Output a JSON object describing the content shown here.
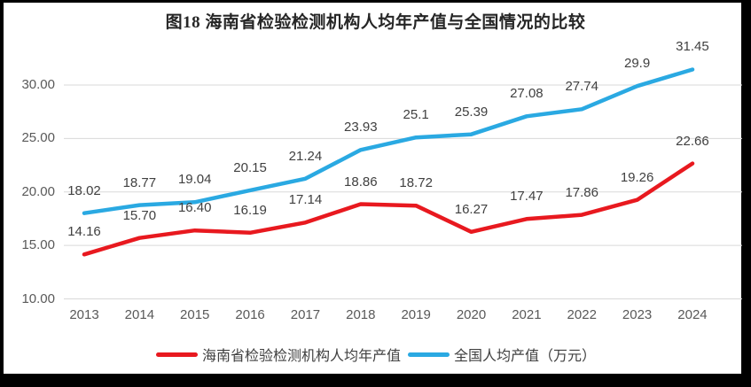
{
  "title": "图18  海南省检验检测机构人均年产值与全国情况的比较",
  "frame": {
    "border_color": "#000000",
    "background": "#ffffff"
  },
  "chart_data": {
    "type": "line",
    "title": "图18  海南省检验检测机构人均年产值与全国情况的比较",
    "categories": [
      "2013",
      "2014",
      "2015",
      "2016",
      "2017",
      "2018",
      "2019",
      "2020",
      "2021",
      "2022",
      "2023",
      "2024"
    ],
    "series": [
      {
        "name": "海南省检验检测机构人均年产值",
        "color": "#e8191f",
        "values": [
          14.16,
          15.7,
          16.4,
          16.19,
          17.14,
          18.86,
          18.72,
          16.27,
          17.47,
          17.86,
          19.26,
          22.66
        ],
        "labels": [
          "14.16",
          "15.70",
          "16.40",
          "16.19",
          "17.14",
          "18.86",
          "18.72",
          "16.27",
          "17.47",
          "17.86",
          "19.26",
          "22.66"
        ]
      },
      {
        "name": "全国人均产值（万元）",
        "color": "#2aa9e2",
        "values": [
          18.02,
          18.77,
          19.04,
          20.15,
          21.24,
          23.93,
          25.1,
          25.39,
          27.08,
          27.74,
          29.9,
          31.45
        ],
        "labels": [
          "18.02",
          "18.77",
          "19.04",
          "20.15",
          "21.24",
          "23.93",
          "25.1",
          "25.39",
          "27.08",
          "27.74",
          "29.9",
          "31.45"
        ]
      }
    ],
    "xlabel": "",
    "ylabel": "",
    "y_ticks": [
      "30.00",
      "25.00",
      "20.00",
      "15.00",
      "10.00"
    ],
    "y_tick_values": [
      30,
      25,
      20,
      15,
      10
    ],
    "ylim": [
      10,
      32.5
    ],
    "grid": "horizontal",
    "gridline_color": "#d9d9d9",
    "legend_position": "bottom"
  },
  "legend": {
    "items": [
      {
        "label": "海南省检验检测机构人均年产值",
        "color": "#e8191f"
      },
      {
        "label": "全国人均产值（万元）",
        "color": "#2aa9e2"
      }
    ]
  }
}
